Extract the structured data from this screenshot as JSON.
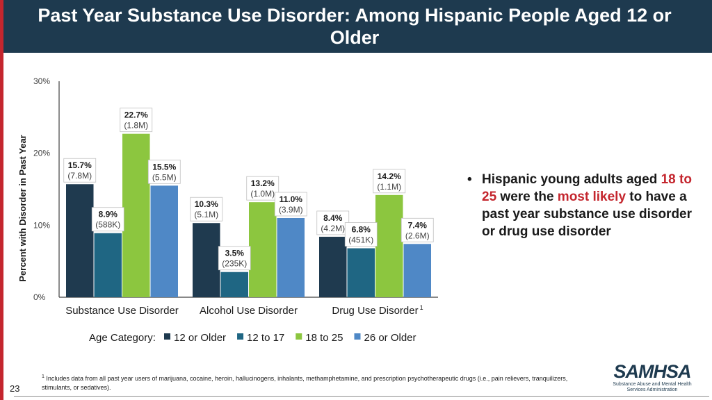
{
  "header": {
    "title": "Past Year Substance Use Disorder: Among Hispanic People Aged 12 or Older"
  },
  "chart_data": {
    "type": "bar",
    "title": "",
    "ylabel": "Percent with Disorder in Past Year",
    "xlabel": "",
    "ylim": [
      0,
      30
    ],
    "yticks": [
      "0%",
      "10%",
      "20%",
      "30%"
    ],
    "categories": [
      "Substance Use Disorder",
      "Alcohol Use Disorder",
      "Drug Use Disorder"
    ],
    "category_superscripts": [
      "",
      "",
      "1"
    ],
    "legend_title": "Age Category:",
    "series": [
      {
        "name": "12 or Older",
        "color": "#1f3a4f",
        "values": [
          15.7,
          10.3,
          8.4
        ],
        "pct_labels": [
          "15.7%",
          "10.3%",
          "8.4%"
        ],
        "count_labels": [
          "(7.8M)",
          "(5.1M)",
          "(4.2M)"
        ]
      },
      {
        "name": "12 to 17",
        "color": "#1f6683",
        "values": [
          8.9,
          3.5,
          6.8
        ],
        "pct_labels": [
          "8.9%",
          "3.5%",
          "6.8%"
        ],
        "count_labels": [
          "(588K)",
          "(235K)",
          "(451K)"
        ]
      },
      {
        "name": "18 to 25",
        "color": "#8cc63f",
        "values": [
          22.7,
          13.2,
          14.2
        ],
        "pct_labels": [
          "22.7%",
          "13.2%",
          "14.2%"
        ],
        "count_labels": [
          "(1.8M)",
          "(1.0M)",
          "(1.1M)"
        ]
      },
      {
        "name": "26 or Older",
        "color": "#4f88c6",
        "values": [
          15.5,
          11.0,
          7.4
        ],
        "pct_labels": [
          "15.5%",
          "11.0%",
          "7.4%"
        ],
        "count_labels": [
          "(5.5M)",
          "(3.9M)",
          "(2.6M)"
        ]
      }
    ]
  },
  "bullet": {
    "marker": "•",
    "part1": "Hispanic young adults aged ",
    "highlight1": "18 to 25",
    "part2": " were the ",
    "highlight2": "most likely",
    "part3": " to have a past year substance use disorder or drug use disorder"
  },
  "footnote": {
    "marker": "1",
    "text": " Includes data from all past year users of marijuana, cocaine, heroin, hallucinogens, inhalants, methamphetamine, and prescription psychotherapeutic drugs (i.e., pain relievers, tranquilizers, stimulants, or sedatives)."
  },
  "page_number": "23",
  "logo": {
    "main": "SAMHSA",
    "sub": "Substance Abuse and Mental Health Services Administration"
  },
  "colors": {
    "header_bg": "#1e3a4f",
    "accent_red": "#c4262e"
  }
}
